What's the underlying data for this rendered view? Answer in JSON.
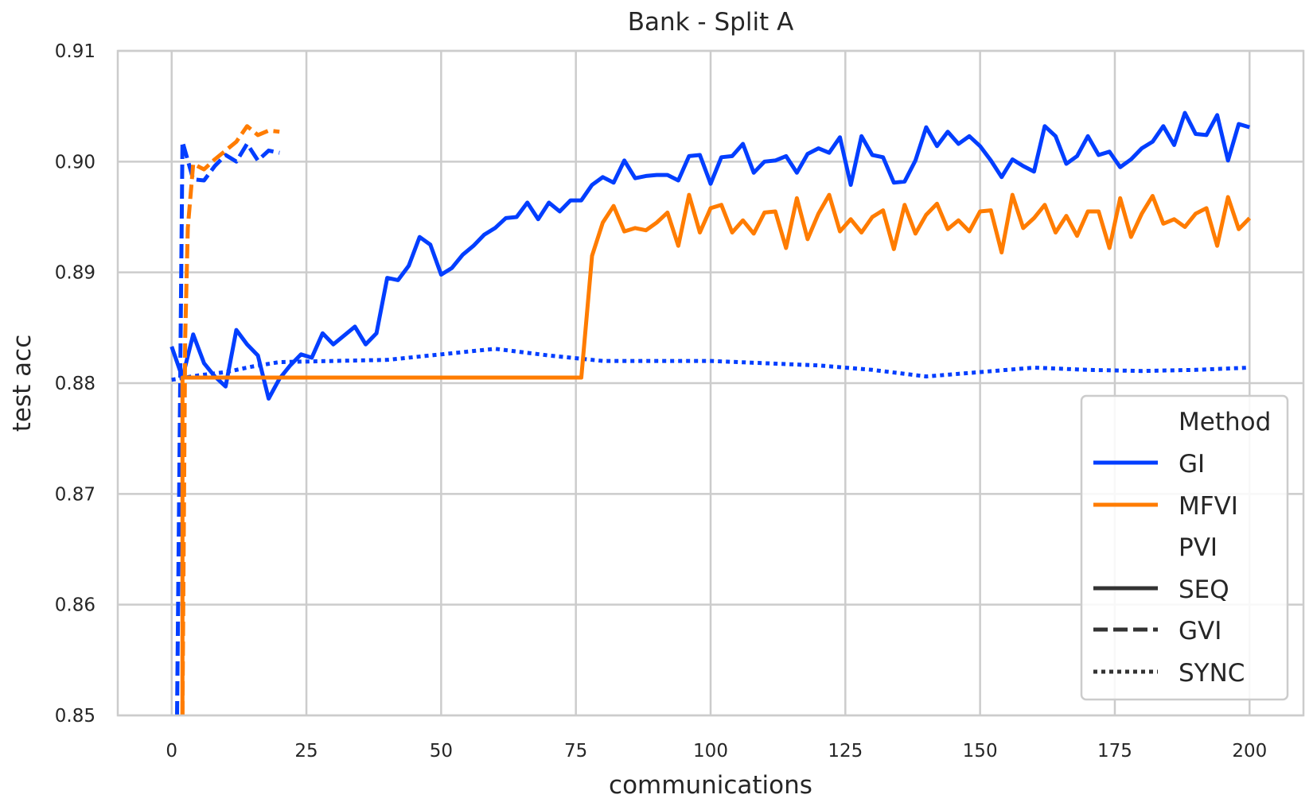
{
  "chart_data": {
    "type": "line",
    "title": "Bank - Split A",
    "xlabel": "communications",
    "ylabel": "test acc",
    "xlim": [
      -10,
      210
    ],
    "ylim": [
      0.85,
      0.91
    ],
    "xticks": [
      0,
      25,
      50,
      75,
      100,
      125,
      150,
      175,
      200
    ],
    "yticks": [
      0.85,
      0.86,
      0.87,
      0.88,
      0.89,
      0.9,
      0.91
    ],
    "xtick_labels": [
      "0",
      "25",
      "50",
      "75",
      "100",
      "125",
      "150",
      "175",
      "200"
    ],
    "ytick_labels": [
      "0.85",
      "0.86",
      "0.87",
      "0.88",
      "0.89",
      "0.90",
      "0.91"
    ],
    "grid": true,
    "legend": {
      "placement": "lower right",
      "hue_title": "Method",
      "style_title": "PVI",
      "hue_entries": [
        {
          "label": "GI",
          "color": "#023eff"
        },
        {
          "label": "MFVI",
          "color": "#ff7c00"
        }
      ],
      "style_entries": [
        {
          "label": "SEQ",
          "dash": "solid"
        },
        {
          "label": "GVI",
          "dash": "dashed"
        },
        {
          "label": "SYNC",
          "dash": "dotted"
        }
      ]
    },
    "series": [
      {
        "name": "GI",
        "method": "GI",
        "pvi": "SEQ",
        "color": "#023eff",
        "dash": "solid",
        "x": [
          0,
          2,
          4,
          6,
          8,
          10,
          12,
          14,
          16,
          18,
          20,
          22,
          24,
          26,
          28,
          30,
          32,
          34,
          36,
          38,
          40,
          42,
          44,
          46,
          48,
          50,
          52,
          54,
          56,
          58,
          60,
          62,
          64,
          66,
          68,
          70,
          72,
          74,
          76,
          78,
          80,
          82,
          84,
          86,
          88,
          90,
          92,
          94,
          96,
          98,
          100,
          102,
          104,
          106,
          108,
          110,
          112,
          114,
          116,
          118,
          120,
          122,
          124,
          126,
          128,
          130,
          132,
          134,
          136,
          138,
          140,
          142,
          144,
          146,
          148,
          150,
          152,
          154,
          156,
          158,
          160,
          162,
          164,
          166,
          168,
          170,
          172,
          174,
          176,
          178,
          180,
          182,
          184,
          186,
          188,
          190,
          192,
          194,
          196,
          198,
          200
        ],
        "y": [
          0.8833,
          0.8805,
          0.8844,
          0.8818,
          0.8806,
          0.8797,
          0.8848,
          0.8835,
          0.8825,
          0.8786,
          0.8804,
          0.8816,
          0.8826,
          0.8823,
          0.8845,
          0.8835,
          0.8843,
          0.8851,
          0.8835,
          0.8845,
          0.8895,
          0.8893,
          0.8906,
          0.8932,
          0.8925,
          0.8898,
          0.8904,
          0.8916,
          0.8924,
          0.8934,
          0.894,
          0.8949,
          0.895,
          0.8963,
          0.8948,
          0.8963,
          0.8955,
          0.8965,
          0.8965,
          0.8979,
          0.8986,
          0.8981,
          0.9001,
          0.8985,
          0.8987,
          0.8988,
          0.8988,
          0.8983,
          0.9005,
          0.9006,
          0.898,
          0.9004,
          0.9005,
          0.9016,
          0.899,
          0.9,
          0.9001,
          0.9005,
          0.899,
          0.9007,
          0.9012,
          0.9008,
          0.9022,
          0.8979,
          0.9023,
          0.9006,
          0.9004,
          0.8981,
          0.8982,
          0.9001,
          0.9031,
          0.9014,
          0.9027,
          0.9016,
          0.9023,
          0.9014,
          0.9001,
          0.8986,
          0.9002,
          0.8996,
          0.8991,
          0.9032,
          0.9023,
          0.8998,
          0.9005,
          0.9023,
          0.9006,
          0.9009,
          0.8995,
          0.9002,
          0.9012,
          0.9018,
          0.9032,
          0.9015,
          0.9044,
          0.9025,
          0.9024,
          0.9042,
          0.9001,
          0.9034,
          0.9031
        ]
      },
      {
        "name": "GI",
        "method": "GI",
        "pvi": "GVI",
        "color": "#023eff",
        "dash": "dashed",
        "x": [
          1,
          2,
          4,
          6,
          8,
          10,
          12,
          14,
          16,
          18,
          20
        ],
        "y": [
          0.85,
          0.9018,
          0.8984,
          0.8983,
          0.8996,
          0.9006,
          0.9,
          0.9016,
          0.9001,
          0.901,
          0.9008
        ]
      },
      {
        "name": "GI",
        "method": "GI",
        "pvi": "SYNC",
        "color": "#023eff",
        "dash": "dotted",
        "x": [
          0,
          5,
          10,
          15,
          20,
          30,
          40,
          50,
          60,
          70,
          80,
          90,
          100,
          110,
          120,
          130,
          140,
          150,
          160,
          170,
          180,
          190,
          200
        ],
        "y": [
          0.8803,
          0.8807,
          0.881,
          0.8815,
          0.8819,
          0.882,
          0.8821,
          0.8826,
          0.8831,
          0.8825,
          0.882,
          0.882,
          0.882,
          0.8818,
          0.8816,
          0.8812,
          0.8806,
          0.881,
          0.8814,
          0.8812,
          0.8811,
          0.8812,
          0.8814
        ]
      },
      {
        "name": "MFVI",
        "method": "MFVI",
        "pvi": "SEQ",
        "color": "#ff7c00",
        "dash": "solid",
        "x": [
          2,
          2,
          76,
          78,
          80,
          82,
          84,
          86,
          88,
          90,
          92,
          94,
          96,
          98,
          100,
          102,
          104,
          106,
          108,
          110,
          112,
          114,
          116,
          118,
          120,
          122,
          124,
          126,
          128,
          130,
          132,
          134,
          136,
          138,
          140,
          142,
          144,
          146,
          148,
          150,
          152,
          154,
          156,
          158,
          160,
          162,
          164,
          166,
          168,
          170,
          172,
          174,
          176,
          178,
          180,
          182,
          184,
          186,
          188,
          190,
          192,
          194,
          196,
          198,
          200
        ],
        "y": [
          0.85,
          0.8805,
          0.8805,
          0.8915,
          0.8945,
          0.896,
          0.8937,
          0.894,
          0.8938,
          0.8945,
          0.8954,
          0.8924,
          0.897,
          0.8936,
          0.8958,
          0.8961,
          0.8936,
          0.8947,
          0.8935,
          0.8954,
          0.8955,
          0.8922,
          0.8967,
          0.893,
          0.8953,
          0.897,
          0.8937,
          0.8948,
          0.8936,
          0.895,
          0.8956,
          0.8921,
          0.8961,
          0.8935,
          0.8952,
          0.8962,
          0.8939,
          0.8947,
          0.8937,
          0.8955,
          0.8956,
          0.8918,
          0.897,
          0.894,
          0.8949,
          0.8961,
          0.8936,
          0.8951,
          0.8933,
          0.8955,
          0.8955,
          0.8922,
          0.8967,
          0.8932,
          0.8953,
          0.8969,
          0.8944,
          0.8948,
          0.8941,
          0.8953,
          0.8958,
          0.8924,
          0.8968,
          0.8939,
          0.8949
        ]
      },
      {
        "name": "MFVI",
        "method": "MFVI",
        "pvi": "GVI",
        "color": "#ff7c00",
        "dash": "dashed",
        "x": [
          2,
          2.5,
          3,
          4,
          6,
          8,
          10,
          12,
          14,
          16,
          18,
          20
        ],
        "y": [
          0.85,
          0.884,
          0.894,
          0.8998,
          0.8993,
          0.9002,
          0.901,
          0.9018,
          0.9032,
          0.9024,
          0.9028,
          0.9027
        ]
      }
    ]
  }
}
